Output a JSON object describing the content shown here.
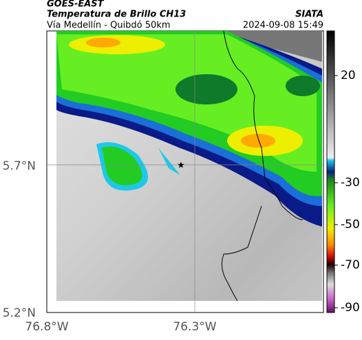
{
  "header": {
    "agency": "GOES-EAST",
    "product": "Temperatura de Brillo CH13",
    "org": "SIATA",
    "route": "Vía Medellín - Quibdó 50km",
    "datetime": "2024-09-08 15:49"
  },
  "axes": {
    "x_ticks": [
      "76.8°W",
      "76.3°W"
    ],
    "y_ticks": [
      "5.7°N",
      "5.2°N"
    ]
  },
  "colorbar": {
    "ticks": [
      20,
      -30,
      -50,
      -70,
      -90
    ]
  }
}
